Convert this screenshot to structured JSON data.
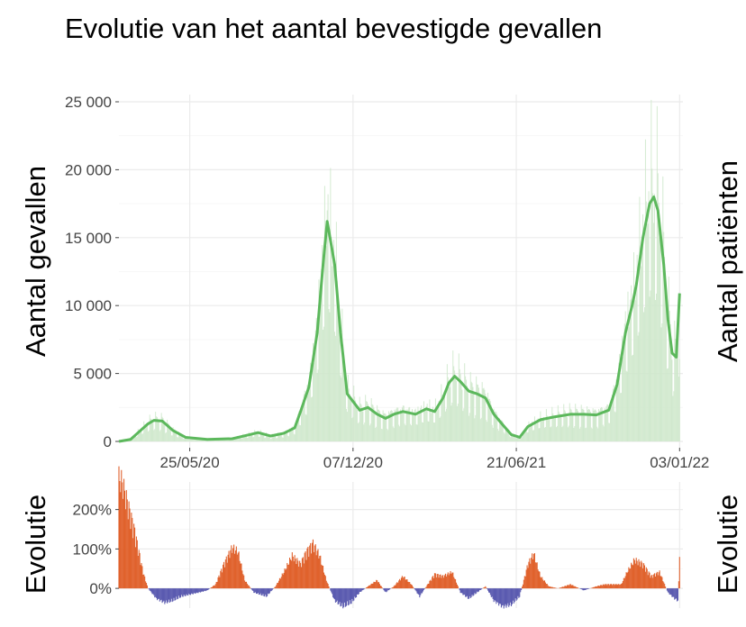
{
  "title": "Evolutie van het aantal bevestigde gevallen",
  "colors": {
    "line": "#5cb85c",
    "bars": "#cfe8cc",
    "positive": "#e0622d",
    "negative": "#5b5bb0",
    "grid": "#ebebeb"
  },
  "chart_data": [
    {
      "type": "line",
      "title": "Evolutie van het aantal bevestigde gevallen",
      "ylabel": "Aantal gevallen",
      "ylabel_right": "Aantal patiënten",
      "xlim": [
        "2020-03-01",
        "2022-01-07"
      ],
      "ylim": [
        0,
        25000
      ],
      "grid": true,
      "x_ticks": [
        {
          "date": "2020-05-25",
          "label": "25/05/20"
        },
        {
          "date": "2020-12-07",
          "label": "07/12/20"
        },
        {
          "date": "2021-06-21",
          "label": "21/06/21"
        },
        {
          "date": "2022-01-03",
          "label": "03/01/22"
        }
      ],
      "y_ticks": [
        {
          "value": 0,
          "label": "0"
        },
        {
          "value": 5000,
          "label": "5 000"
        },
        {
          "value": 10000,
          "label": "10 000"
        },
        {
          "value": 15000,
          "label": "15 000"
        },
        {
          "value": 20000,
          "label": "20 000"
        },
        {
          "value": 25000,
          "label": "25 000"
        }
      ],
      "series": [
        {
          "x": [
            "2020-03-01",
            "2020-03-15",
            "2020-03-25",
            "2020-04-05",
            "2020-04-12",
            "2020-04-22",
            "2020-05-05",
            "2020-05-20",
            "2020-06-15",
            "2020-07-15",
            "2020-08-05",
            "2020-08-15",
            "2020-08-30",
            "2020-09-15",
            "2020-09-28",
            "2020-10-05",
            "2020-10-15",
            "2020-10-25",
            "2020-11-01",
            "2020-11-06",
            "2020-11-15",
            "2020-11-22",
            "2020-11-30",
            "2020-12-15",
            "2020-12-25",
            "2021-01-05",
            "2021-01-15",
            "2021-01-25",
            "2021-02-05",
            "2021-02-20",
            "2021-03-05",
            "2021-03-15",
            "2021-03-25",
            "2021-04-01",
            "2021-04-08",
            "2021-04-15",
            "2021-04-25",
            "2021-05-05",
            "2021-05-15",
            "2021-05-25",
            "2021-06-05",
            "2021-06-15",
            "2021-06-25",
            "2021-07-05",
            "2021-07-20",
            "2021-08-05",
            "2021-08-25",
            "2021-09-10",
            "2021-09-25",
            "2021-10-10",
            "2021-10-20",
            "2021-10-30",
            "2021-11-07",
            "2021-11-12",
            "2021-11-20",
            "2021-11-28",
            "2021-12-03",
            "2021-12-08",
            "2021-12-15",
            "2021-12-20",
            "2021-12-25",
            "2021-12-30",
            "2022-01-03"
          ],
          "y": [
            0,
            150,
            700,
            1300,
            1550,
            1500,
            800,
            300,
            150,
            200,
            500,
            650,
            400,
            600,
            1000,
            2200,
            4000,
            8000,
            13000,
            16200,
            13000,
            8000,
            3500,
            2300,
            2500,
            2000,
            1700,
            2000,
            2200,
            2000,
            2400,
            2200,
            3200,
            4300,
            4800,
            4400,
            3700,
            3500,
            3200,
            2000,
            1200,
            500,
            300,
            1100,
            1600,
            1800,
            2000,
            2000,
            1950,
            2300,
            4200,
            8000,
            10000,
            11500,
            15000,
            17500,
            18000,
            17000,
            13000,
            9000,
            6500,
            6200,
            10900
          ]
        }
      ]
    },
    {
      "type": "area",
      "ylabel": "Evolutie",
      "ylabel_right": "Evolutie",
      "xlim": [
        "2020-03-01",
        "2022-01-07"
      ],
      "ylim": [
        -50,
        270
      ],
      "grid": true,
      "y_ticks": [
        {
          "value": 0,
          "label": "0%"
        },
        {
          "value": 100,
          "label": "100%"
        },
        {
          "value": 200,
          "label": "200%"
        }
      ],
      "series": [
        {
          "x": [
            "2020-03-01",
            "2020-03-05",
            "2020-03-10",
            "2020-03-15",
            "2020-03-20",
            "2020-03-25",
            "2020-03-30",
            "2020-04-05",
            "2020-04-15",
            "2020-04-25",
            "2020-05-05",
            "2020-05-15",
            "2020-05-25",
            "2020-06-05",
            "2020-06-15",
            "2020-06-25",
            "2020-07-05",
            "2020-07-15",
            "2020-07-22",
            "2020-07-30",
            "2020-08-10",
            "2020-08-25",
            "2020-09-05",
            "2020-09-15",
            "2020-09-25",
            "2020-10-05",
            "2020-10-12",
            "2020-10-20",
            "2020-10-28",
            "2020-11-05",
            "2020-11-15",
            "2020-11-25",
            "2020-12-05",
            "2020-12-15",
            "2020-12-25",
            "2021-01-05",
            "2021-01-15",
            "2021-01-25",
            "2021-02-05",
            "2021-02-15",
            "2021-02-25",
            "2021-03-05",
            "2021-03-15",
            "2021-03-25",
            "2021-04-05",
            "2021-04-15",
            "2021-04-25",
            "2021-05-05",
            "2021-05-15",
            "2021-05-25",
            "2021-06-05",
            "2021-06-15",
            "2021-06-25",
            "2021-07-05",
            "2021-07-12",
            "2021-07-20",
            "2021-07-30",
            "2021-08-10",
            "2021-08-25",
            "2021-09-10",
            "2021-09-25",
            "2021-10-05",
            "2021-10-15",
            "2021-10-25",
            "2021-11-01",
            "2021-11-10",
            "2021-11-20",
            "2021-11-30",
            "2021-12-10",
            "2021-12-20",
            "2021-12-28",
            "2022-01-01",
            "2022-01-03"
          ],
          "y": [
            270,
            260,
            220,
            180,
            140,
            90,
            40,
            0,
            -25,
            -35,
            -30,
            -20,
            -15,
            -10,
            -5,
            10,
            60,
            100,
            90,
            20,
            -10,
            -20,
            5,
            40,
            80,
            60,
            90,
            110,
            80,
            20,
            -30,
            -45,
            -35,
            -10,
            5,
            20,
            -10,
            5,
            30,
            10,
            -20,
            5,
            35,
            30,
            40,
            -10,
            -25,
            -10,
            5,
            -30,
            -45,
            -40,
            -20,
            60,
            85,
            30,
            5,
            0,
            10,
            -5,
            5,
            10,
            10,
            10,
            40,
            70,
            60,
            30,
            40,
            -10,
            -25,
            -30,
            70
          ]
        }
      ]
    }
  ]
}
